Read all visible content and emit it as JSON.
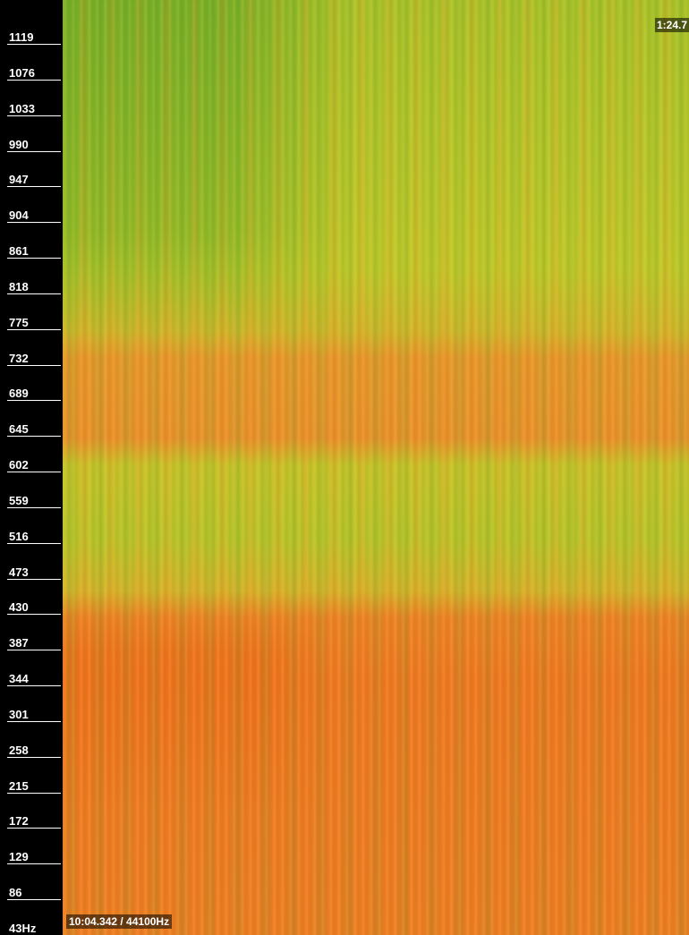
{
  "axis": {
    "labels": [
      "1119",
      "1076",
      "1033",
      "990",
      "947",
      "904",
      "861",
      "818",
      "775",
      "732",
      "689",
      "645",
      "602",
      "559",
      "516",
      "473",
      "430",
      "387",
      "344",
      "301",
      "258",
      "215",
      "172",
      "129",
      "86",
      "43Hz"
    ]
  },
  "overlay": {
    "time": "1:24.7",
    "status": "10:04.342 / 44100Hz"
  }
}
